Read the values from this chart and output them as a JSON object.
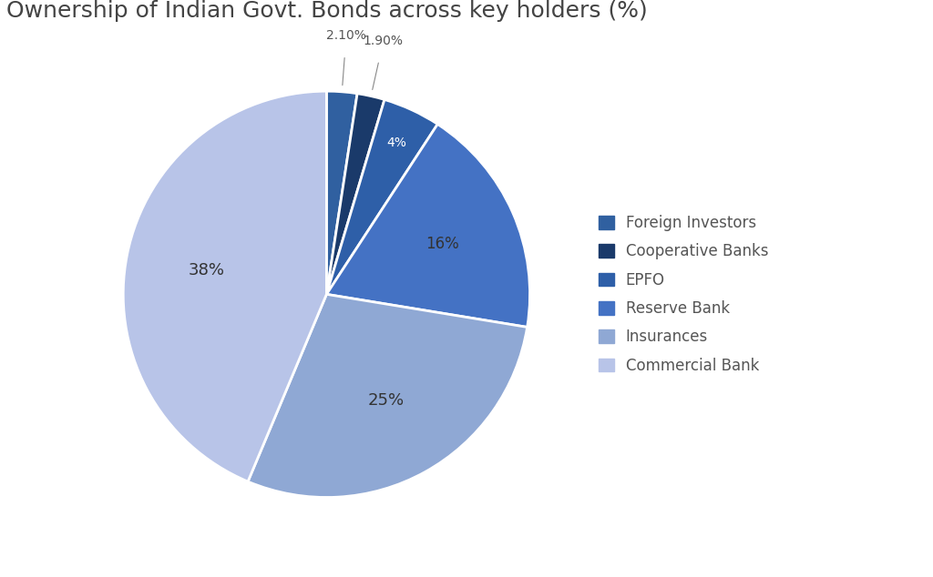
{
  "title": "Ownership of Indian Govt. Bonds across key holders (%)",
  "labels": [
    "Foreign Investors",
    "Cooperative Banks",
    "EPFO",
    "Reserve Bank",
    "Insurances",
    "Commercial Bank"
  ],
  "values": [
    2.1,
    1.9,
    4.0,
    16.0,
    25.0,
    38.0
  ],
  "colors": [
    "#3060A0",
    "#1A3A6A",
    "#2E5FA8",
    "#4472C4",
    "#8FA8D4",
    "#B8C4E8"
  ],
  "pct_labels": [
    "2.10%",
    "1.90%",
    "4%",
    "16%",
    "25%",
    "38%"
  ],
  "background_color": "#FFFFFF",
  "title_fontsize": 18,
  "legend_fontsize": 12,
  "startangle": 90
}
